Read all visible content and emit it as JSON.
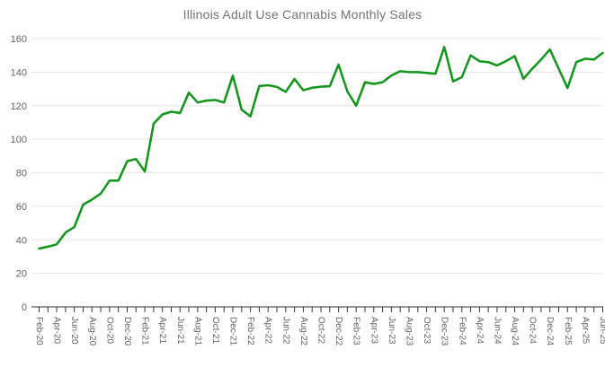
{
  "chart_data": {
    "type": "line",
    "title": "Illinois Adult Use Cannabis Monthly Sales",
    "xlabel": "",
    "ylabel": "",
    "ylim": [
      0,
      160
    ],
    "y_ticks": [
      0,
      20,
      40,
      60,
      80,
      100,
      120,
      140,
      160
    ],
    "grid": "horizontal",
    "legend": "none",
    "label_every": 2,
    "x_tick_labels_shown": [
      "Feb-20",
      "Apr-20",
      "Jun-20",
      "Aug-20",
      "Oct-20",
      "Dec-20",
      "Feb-21",
      "Apr-21",
      "Jun-21",
      "Aug-21",
      "Oct-21",
      "Dec-21",
      "Feb-22",
      "Apr-22",
      "Jun-22",
      "Aug-22",
      "Oct-22",
      "Dec-22",
      "Feb-23",
      "Apr-23",
      "Jun-23",
      "Aug-23",
      "Oct-23",
      "Dec-23",
      "Feb-24",
      "Apr-24",
      "Jun-24",
      "Aug-24",
      "Oct-24",
      "Dec-24",
      "Feb-25",
      "Apr-25"
    ],
    "categories": [
      "Feb-20",
      "Mar-20",
      "Apr-20",
      "May-20",
      "Jun-20",
      "Jul-20",
      "Aug-20",
      "Sep-20",
      "Oct-20",
      "Nov-20",
      "Dec-20",
      "Jan-21",
      "Feb-21",
      "Mar-21",
      "Apr-21",
      "May-21",
      "Jun-21",
      "Jul-21",
      "Aug-21",
      "Sep-21",
      "Oct-21",
      "Nov-21",
      "Dec-21",
      "Jan-22",
      "Feb-22",
      "Mar-22",
      "Apr-22",
      "May-22",
      "Jun-22",
      "Jul-22",
      "Aug-22",
      "Sep-22",
      "Oct-22",
      "Nov-22",
      "Dec-22",
      "Jan-23",
      "Feb-23",
      "Mar-23",
      "Apr-23",
      "May-23",
      "Jun-23",
      "Jul-23",
      "Aug-23",
      "Sep-23",
      "Oct-23",
      "Nov-23",
      "Dec-23",
      "Jan-24",
      "Feb-24",
      "Mar-24",
      "Apr-24",
      "May-24",
      "Jun-24",
      "Jul-24",
      "Aug-24",
      "Sep-24",
      "Oct-24",
      "Nov-24",
      "Dec-24",
      "Jan-25",
      "Feb-25",
      "Mar-25",
      "Apr-25",
      "May-25",
      "Jun-25"
    ],
    "series": [
      {
        "name": "Monthly Sales",
        "values": [
          34.8,
          35.9,
          37.3,
          44.3,
          47.6,
          61.0,
          64.0,
          67.6,
          75.3,
          75.3,
          86.9,
          88.2,
          80.7,
          109.2,
          114.8,
          116.4,
          115.6,
          127.8,
          121.9,
          123.0,
          123.4,
          121.9,
          137.9,
          117.6,
          113.6,
          131.7,
          132.2,
          131.2,
          128.2,
          135.9,
          129.2,
          130.7,
          131.3,
          131.6,
          144.5,
          128.5,
          120.0,
          134.0,
          133.0,
          134.0,
          138.0,
          140.5,
          140.0,
          140.0,
          139.5,
          139.0,
          155.0,
          134.5,
          137.0,
          150.0,
          146.5,
          146.0,
          144.0,
          146.5,
          149.5,
          136.0,
          142.0,
          147.5,
          153.5,
          142.0,
          130.5,
          146.0,
          148.0,
          147.5,
          151.5
        ]
      }
    ],
    "colors": {
      "line": "#109618",
      "grid": "#e6e6e6",
      "axis": "#333333",
      "tick": "#333333",
      "tick_label": "#5f6368",
      "title": "#757575",
      "background": "#ffffff"
    }
  }
}
